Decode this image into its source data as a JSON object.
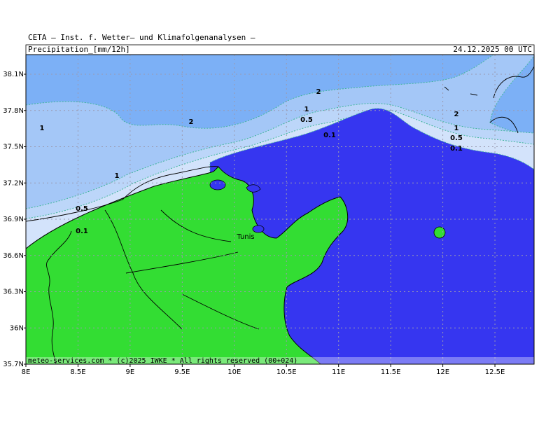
{
  "header": {
    "credit": "CETA – Inst. f. Wetter– und Klimafolgenanalysen –",
    "title": "Precipitation_[mm/12h]",
    "datetime": "24.12.2025 00 UTC"
  },
  "axes": {
    "lat_ticks": [
      {
        "value": 38.1,
        "label": "38.1N"
      },
      {
        "value": 37.8,
        "label": "37.8N"
      },
      {
        "value": 37.5,
        "label": "37.5N"
      },
      {
        "value": 37.2,
        "label": "37.2N"
      },
      {
        "value": 36.9,
        "label": "36.9N"
      },
      {
        "value": 36.6,
        "label": "36.6N"
      },
      {
        "value": 36.3,
        "label": "36.3N"
      },
      {
        "value": 36,
        "label": "36N"
      },
      {
        "value": 35.7,
        "label": "35.7N"
      }
    ],
    "lon_ticks": [
      {
        "value": 8,
        "label": "8E"
      },
      {
        "value": 8.5,
        "label": "8.5E"
      },
      {
        "value": 9,
        "label": "9E"
      },
      {
        "value": 9.5,
        "label": "9.5E"
      },
      {
        "value": 10,
        "label": "10E"
      },
      {
        "value": 10.5,
        "label": "10.5E"
      },
      {
        "value": 11,
        "label": "11E"
      },
      {
        "value": 11.5,
        "label": "11.5E"
      },
      {
        "value": 12,
        "label": "12E"
      },
      {
        "value": 12.5,
        "label": "12.5E"
      }
    ]
  },
  "contour_labels": [
    "2",
    "2",
    "2",
    "1",
    "1",
    "1",
    "1",
    "0.5",
    "0.5",
    "0.5",
    "0.1",
    "0.1",
    "0.1"
  ],
  "place_labels": [
    "Tunis"
  ],
  "footer": "meteo-services.com * (c)2025 IWKE * All rights reserved (00+024)"
}
